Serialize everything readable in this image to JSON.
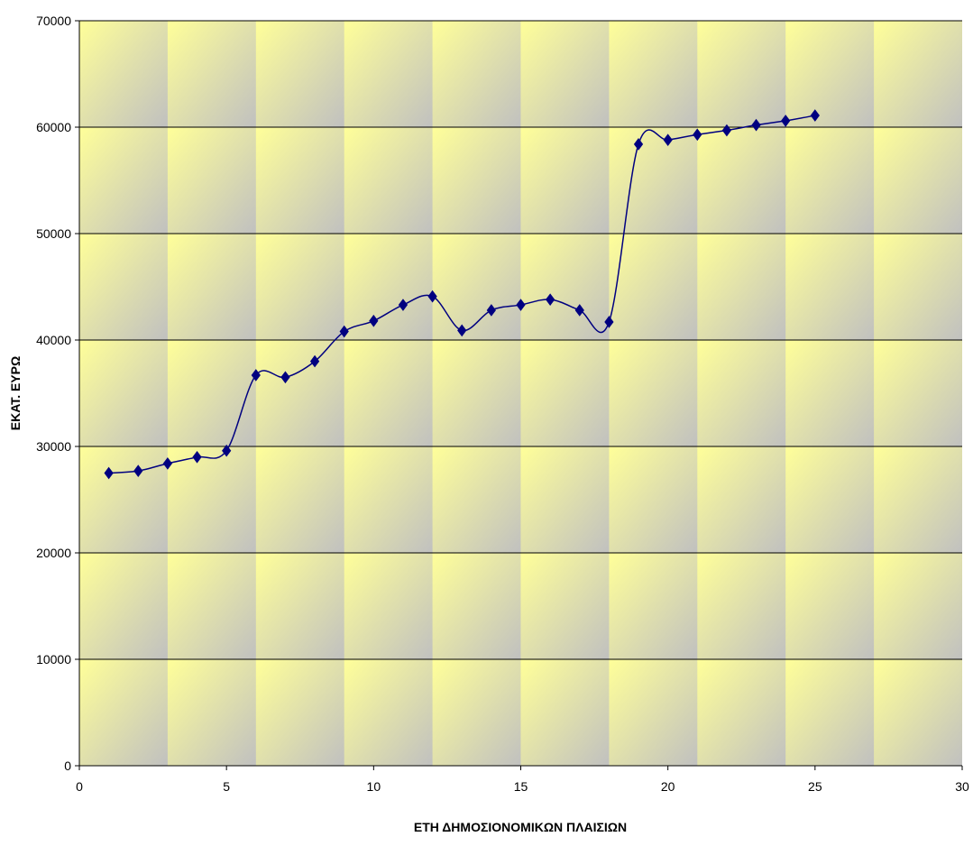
{
  "chart_data": {
    "type": "line",
    "title": "",
    "xlabel": "ΕΤΗ ΔΗΜΟΣΙΟΝΟΜΙΚΩΝ ΠΛΑΙΣΙΩΝ",
    "ylabel": "ΕΚΑΤ. ΕΥΡΩ",
    "xlim": [
      0,
      30
    ],
    "ylim": [
      0,
      70000
    ],
    "x_ticks": [
      "0",
      "5",
      "10",
      "15",
      "20",
      "25",
      "30"
    ],
    "y_ticks": [
      "0",
      "10000",
      "20000",
      "30000",
      "40000",
      "50000",
      "60000",
      "70000"
    ],
    "grid": "horizontal",
    "legend": "none",
    "smoothed": true,
    "colors": {
      "line": "#000080",
      "marker": "#000080",
      "gridline": "#000000",
      "tile_light": "#ffff99",
      "tile_dark": "#c0c0c0"
    },
    "series": [
      {
        "x": [
          1,
          2,
          3,
          4,
          5,
          6,
          7,
          8,
          9,
          10,
          11,
          12,
          13,
          14,
          15,
          16,
          17,
          18,
          19,
          20,
          21,
          22,
          23,
          24,
          25
        ],
        "values": [
          27500,
          27700,
          28400,
          29000,
          29600,
          36700,
          36500,
          38000,
          40800,
          41800,
          43300,
          44100,
          40900,
          42800,
          43300,
          43800,
          42800,
          41700,
          58400,
          58800,
          59300,
          59700,
          60200,
          60600,
          61100
        ]
      }
    ]
  }
}
